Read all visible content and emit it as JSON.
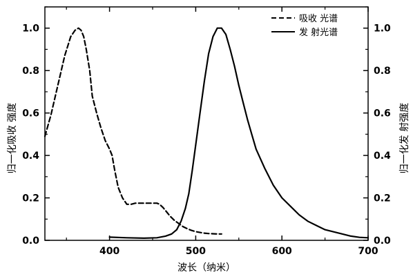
{
  "chart_data": {
    "type": "line",
    "xlabel": "波长（纳米）",
    "ylabel_left": "归一化吸收 强度",
    "ylabel_right": "归一化发 射强度",
    "xlim": [
      325,
      700
    ],
    "ylim": [
      0.0,
      1.1
    ],
    "x_ticks": [
      "400",
      "500",
      "600",
      "700"
    ],
    "y_ticks": [
      "0.0",
      "0.2",
      "0.4",
      "0.6",
      "0.8",
      "1.0"
    ],
    "legend_position": "top-right",
    "series": [
      {
        "name": "吸收 光谱",
        "style": "dashed",
        "color": "#000000",
        "x": [
          325,
          332,
          340,
          348,
          355,
          360,
          364,
          367,
          370,
          373,
          377,
          380,
          385,
          390,
          395,
          400,
          403,
          406,
          410,
          415,
          420,
          425,
          430,
          440,
          450,
          455,
          458,
          462,
          466,
          470,
          475,
          480,
          485,
          490,
          495,
          500,
          505,
          510,
          515,
          520,
          525,
          530
        ],
        "y": [
          0.49,
          0.59,
          0.73,
          0.87,
          0.96,
          0.99,
          1.0,
          0.99,
          0.96,
          0.9,
          0.8,
          0.68,
          0.6,
          0.53,
          0.47,
          0.43,
          0.4,
          0.33,
          0.25,
          0.2,
          0.17,
          0.17,
          0.175,
          0.175,
          0.175,
          0.175,
          0.17,
          0.155,
          0.135,
          0.115,
          0.095,
          0.08,
          0.065,
          0.055,
          0.047,
          0.041,
          0.037,
          0.034,
          0.032,
          0.031,
          0.03,
          0.03
        ]
      },
      {
        "name": "发 射光谱",
        "style": "solid",
        "color": "#000000",
        "x": [
          400,
          420,
          440,
          455,
          465,
          472,
          478,
          483,
          488,
          492,
          496,
          500,
          505,
          510,
          515,
          520,
          525,
          530,
          535,
          540,
          545,
          550,
          555,
          560,
          565,
          570,
          580,
          590,
          600,
          610,
          620,
          630,
          640,
          650,
          660,
          670,
          680,
          690,
          700
        ],
        "y": [
          0.015,
          0.012,
          0.01,
          0.012,
          0.02,
          0.03,
          0.05,
          0.09,
          0.15,
          0.22,
          0.33,
          0.45,
          0.6,
          0.75,
          0.88,
          0.96,
          1.0,
          1.0,
          0.97,
          0.9,
          0.82,
          0.73,
          0.65,
          0.57,
          0.5,
          0.43,
          0.34,
          0.26,
          0.2,
          0.16,
          0.12,
          0.09,
          0.07,
          0.05,
          0.04,
          0.03,
          0.02,
          0.014,
          0.012
        ]
      }
    ]
  }
}
